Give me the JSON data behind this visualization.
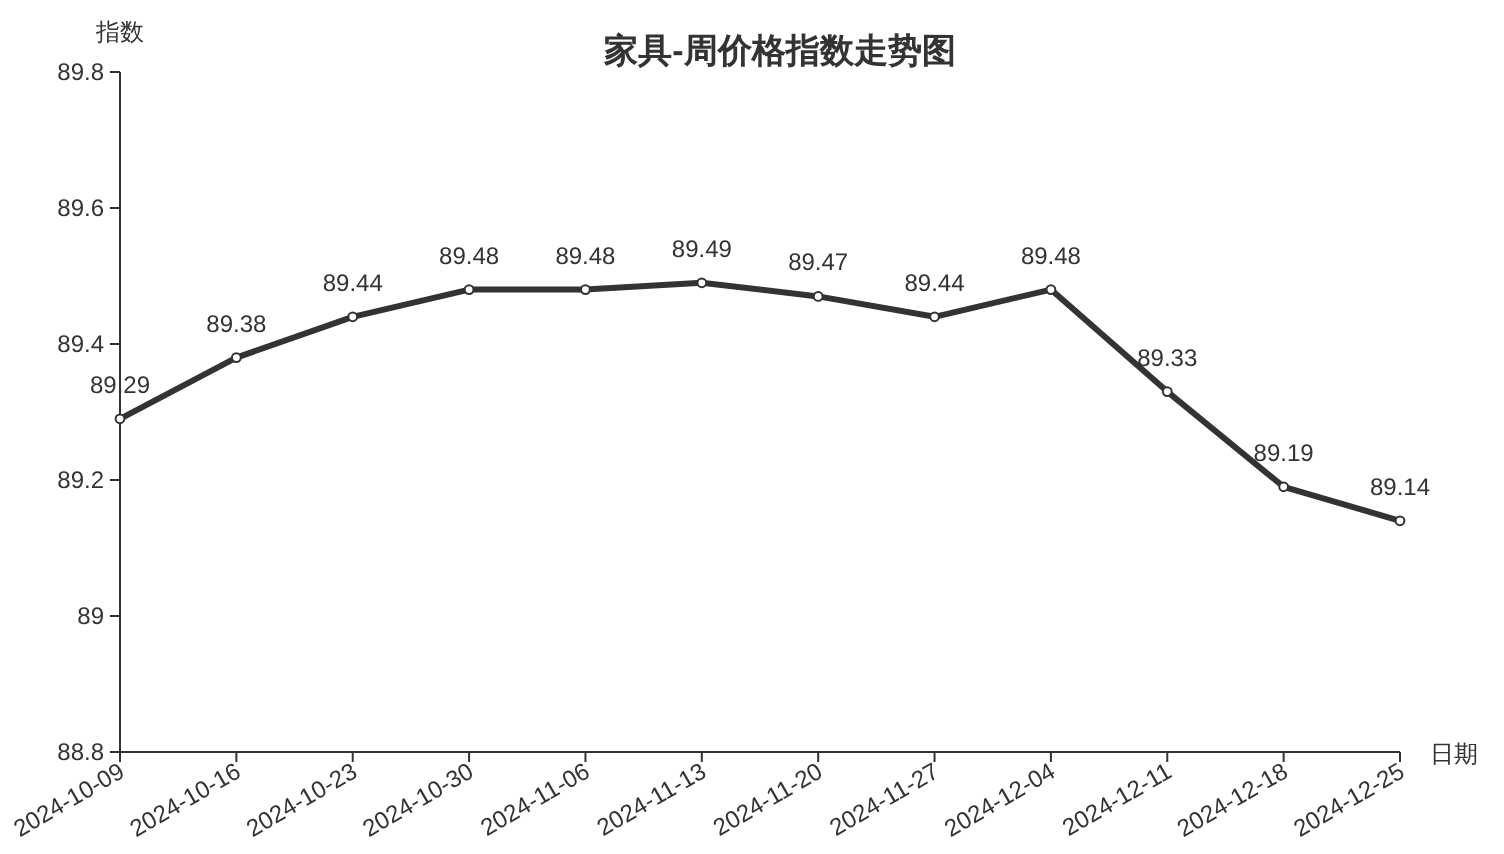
{
  "chart_data": {
    "type": "line",
    "title": "家具-周价格指数走势图",
    "xlabel": "日期",
    "ylabel": "指数",
    "categories": [
      "2024-10-09",
      "2024-10-16",
      "2024-10-23",
      "2024-10-30",
      "2024-11-06",
      "2024-11-13",
      "2024-11-20",
      "2024-11-27",
      "2024-12-04",
      "2024-12-11",
      "2024-12-18",
      "2024-12-25"
    ],
    "series": [
      {
        "color": "#333333",
        "values": [
          89.29,
          89.38,
          89.44,
          89.48,
          89.48,
          89.49,
          89.47,
          89.44,
          89.48,
          89.33,
          89.19,
          89.14
        ]
      }
    ],
    "ylim": [
      88.8,
      89.8
    ],
    "yticks": [
      88.8,
      89,
      89.2,
      89.4,
      89.6,
      89.8
    ],
    "data_labels": true,
    "marker": "circle",
    "line_style": "solid"
  }
}
